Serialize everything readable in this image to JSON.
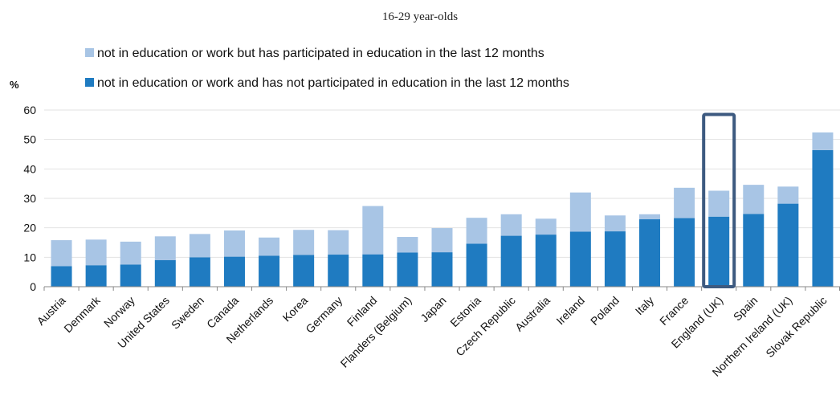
{
  "chart_data": {
    "type": "bar",
    "stacked": true,
    "title": "16-29 year-olds",
    "ylabel": "%",
    "ylim": [
      0,
      60
    ],
    "yticks": [
      0,
      10,
      20,
      30,
      40,
      50,
      60
    ],
    "grid": true,
    "legend_position": "top",
    "categories": [
      "Austria",
      "Denmark",
      "Norway",
      "United States",
      "Sweden",
      "Canada",
      "Netherlands",
      "Korea",
      "Germany",
      "Finland",
      "Flanders (Belgium)",
      "Japan",
      "Estonia",
      "Czech Republic",
      "Australia",
      "Ireland",
      "Poland",
      "Italy",
      "France",
      "England (UK)",
      "Spain",
      "Northern Ireland (UK)",
      "Slovak Republic"
    ],
    "series": [
      {
        "name": "not in education or work and has not participated in education in the last 12 months",
        "color": "#1f7bc1",
        "values": [
          7.0,
          7.3,
          7.5,
          9.0,
          10.0,
          10.2,
          10.5,
          10.8,
          10.9,
          11.0,
          11.6,
          11.7,
          14.6,
          17.3,
          17.7,
          18.7,
          18.8,
          22.9,
          23.3,
          23.8,
          24.7,
          28.2,
          46.4
        ]
      },
      {
        "name": "not in education or work but has participated in education in the last 12 months",
        "color": "#a8c5e5",
        "values": [
          8.8,
          8.7,
          7.8,
          8.1,
          7.9,
          8.9,
          6.2,
          8.5,
          8.3,
          16.4,
          5.3,
          8.2,
          8.8,
          7.3,
          5.4,
          13.3,
          5.4,
          1.7,
          10.3,
          8.8,
          9.9,
          5.8,
          6.0
        ]
      }
    ],
    "highlight": {
      "category": "England (UK)",
      "color": "#3d5a80"
    }
  }
}
